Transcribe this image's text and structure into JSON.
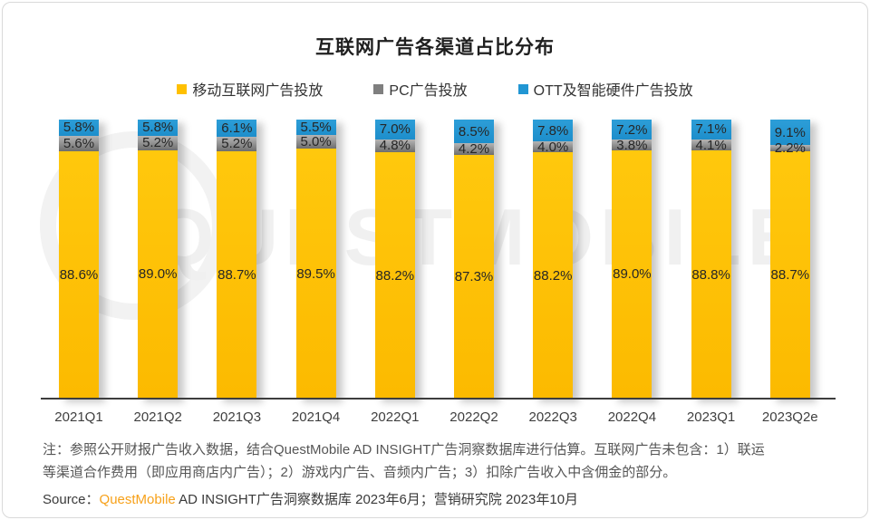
{
  "page": {
    "title": "互联网广告各渠道占比分布"
  },
  "legend": [
    {
      "label": "移动互联网广告投放",
      "color": "#FFC000"
    },
    {
      "label": "PC广告投放",
      "color": "#7F7F7F"
    },
    {
      "label": "OTT及智能硬件广告投放",
      "color": "#2196D3"
    }
  ],
  "chart_data": {
    "type": "bar",
    "stacked": true,
    "unit": "%",
    "title": "互联网广告各渠道占比分布",
    "categories": [
      "2021Q1",
      "2021Q2",
      "2021Q3",
      "2021Q4",
      "2022Q1",
      "2022Q2",
      "2022Q3",
      "2022Q4",
      "2023Q1",
      "2023Q2e"
    ],
    "series": [
      {
        "name": "移动互联网广告投放",
        "color": "#FFC000",
        "values": [
          88.6,
          89.0,
          88.7,
          89.5,
          88.2,
          87.3,
          88.2,
          89.0,
          88.8,
          88.7
        ]
      },
      {
        "name": "PC广告投放",
        "color": "#7F7F7F",
        "values": [
          5.6,
          5.2,
          5.2,
          5.0,
          4.8,
          4.2,
          4.0,
          3.8,
          4.1,
          2.2
        ]
      },
      {
        "name": "OTT及智能硬件广告投放",
        "color": "#2196D3",
        "values": [
          5.8,
          5.8,
          6.1,
          5.5,
          7.0,
          8.5,
          7.8,
          7.2,
          7.1,
          9.1
        ]
      }
    ],
    "ylim": [
      0,
      100
    ],
    "grid": false,
    "legend_position": "top",
    "data_labels": true
  },
  "watermark": {
    "text": "QUESTMOBILE"
  },
  "footer": {
    "note_line1": "注：参照公开财报广告收入数据，结合QuestMobile AD INSIGHT广告洞察数据库进行估算。互联网广告未包含：1）联运",
    "note_line2": "等渠道合作费用（即应用商店内广告）；2）游戏内广告、音频内广告；3）扣除广告收入中含佣金的部分。",
    "source_prefix": "Source：",
    "source_brand": "QuestMobile",
    "source_rest": " AD INSIGHT广告洞察数据库 2023年6月；营销研究院 2023年10月"
  }
}
